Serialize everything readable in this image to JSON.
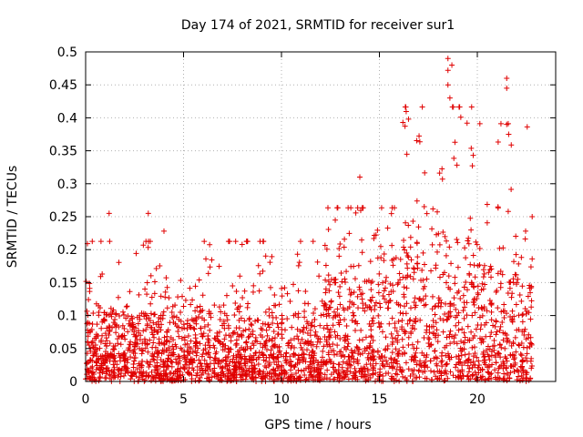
{
  "chart_data": {
    "type": "scatter",
    "title": "Day 174 of 2021, SRMTID for receiver sur1",
    "xlabel": "GPS time / hours",
    "ylabel": "SRMTID / TECUs",
    "xlim": [
      0,
      24
    ],
    "ylim": [
      0,
      0.5
    ],
    "xticks": [
      0,
      5,
      10,
      15,
      20
    ],
    "yticks": [
      0,
      0.05,
      0.1,
      0.15,
      0.2,
      0.25,
      0.3,
      0.35,
      0.4,
      0.45,
      0.5
    ],
    "xtick_labels": [
      "0",
      "5",
      "10",
      "15",
      "20"
    ],
    "ytick_labels": [
      "0",
      "0.05",
      "0.1",
      "0.15",
      "0.2",
      "0.25",
      "0.3",
      "0.35",
      "0.4",
      "0.45",
      "0.5"
    ],
    "grid": true,
    "marker": "+",
    "series_color": "#e00000",
    "time_range_hours": [
      0,
      22.8
    ],
    "typical_value_by_period": [
      {
        "from": 0,
        "to": 12,
        "median": 0.06,
        "max": 0.25
      },
      {
        "from": 12,
        "to": 16,
        "median": 0.09,
        "max": 0.31
      },
      {
        "from": 16,
        "to": 20,
        "median": 0.13,
        "max": 0.49
      },
      {
        "from": 20,
        "to": 22.8,
        "median": 0.1,
        "max": 0.46
      }
    ],
    "notable_points": [
      {
        "x": 1.2,
        "y": 0.255
      },
      {
        "x": 3.2,
        "y": 0.255
      },
      {
        "x": 4.0,
        "y": 0.228
      },
      {
        "x": 14.0,
        "y": 0.31
      },
      {
        "x": 16.2,
        "y": 0.393
      },
      {
        "x": 18.5,
        "y": 0.49
      },
      {
        "x": 18.5,
        "y": 0.472
      },
      {
        "x": 18.5,
        "y": 0.45
      },
      {
        "x": 18.7,
        "y": 0.48
      },
      {
        "x": 18.6,
        "y": 0.43
      },
      {
        "x": 21.5,
        "y": 0.46
      },
      {
        "x": 21.5,
        "y": 0.445
      },
      {
        "x": 21.5,
        "y": 0.39
      },
      {
        "x": 21.6,
        "y": 0.375
      },
      {
        "x": 22.8,
        "y": 0.25
      }
    ]
  }
}
